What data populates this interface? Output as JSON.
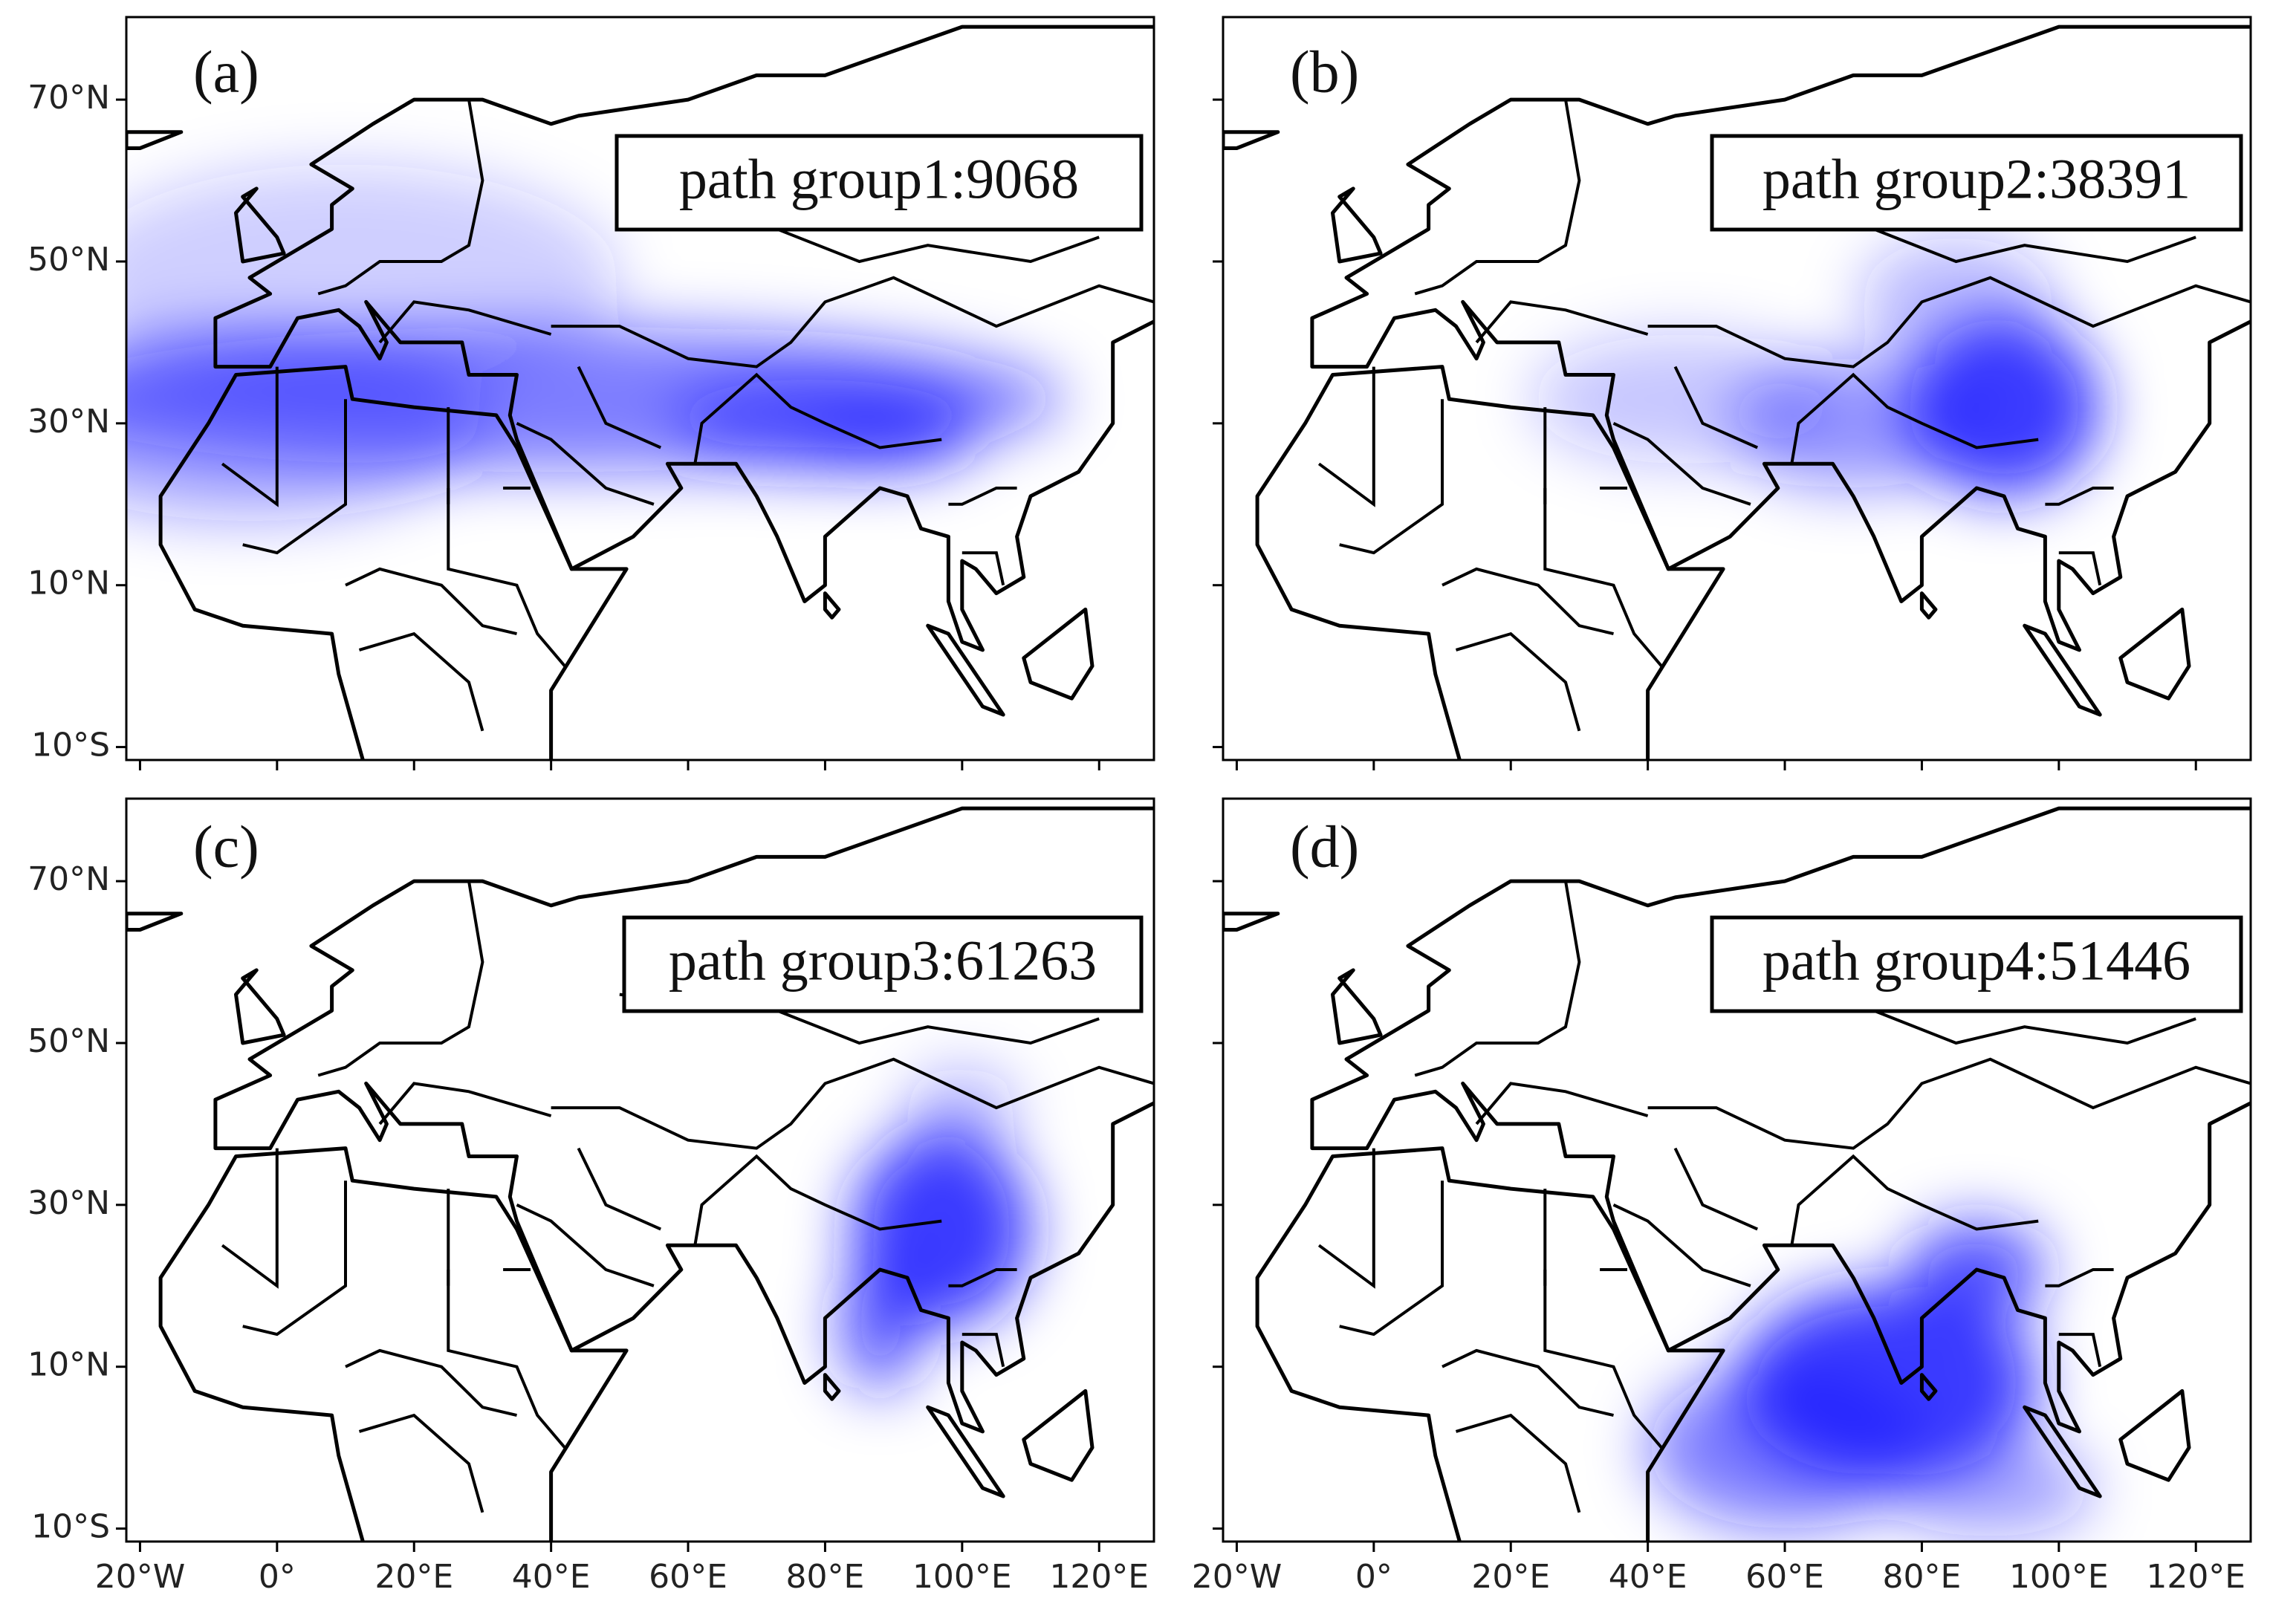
{
  "panels": [
    {
      "label": "(a)",
      "legend": "path group1:9068"
    },
    {
      "label": "(b)",
      "legend": "path group2:38391"
    },
    {
      "label": "(c)",
      "legend": "path group3:61263"
    },
    {
      "label": "(d)",
      "legend": "path group4:51446"
    }
  ],
  "axes": {
    "xlim": [
      -22,
      128
    ],
    "ylim": [
      -11.6,
      80.2
    ],
    "xticks": [
      {
        "value": -20,
        "label": "20°W"
      },
      {
        "value": 0,
        "label": "0°"
      },
      {
        "value": 20,
        "label": "20°E"
      },
      {
        "value": 40,
        "label": "40°E"
      },
      {
        "value": 60,
        "label": "60°E"
      },
      {
        "value": 80,
        "label": "80°E"
      },
      {
        "value": 100,
        "label": "100°E"
      },
      {
        "value": 120,
        "label": "120°E"
      }
    ],
    "yticks": [
      {
        "value": 70,
        "label": "70°N"
      },
      {
        "value": 50,
        "label": "50°N"
      },
      {
        "value": 30,
        "label": "30°N"
      },
      {
        "value": 10,
        "label": "10°N"
      },
      {
        "value": -10,
        "label": "10°S"
      }
    ]
  }
}
